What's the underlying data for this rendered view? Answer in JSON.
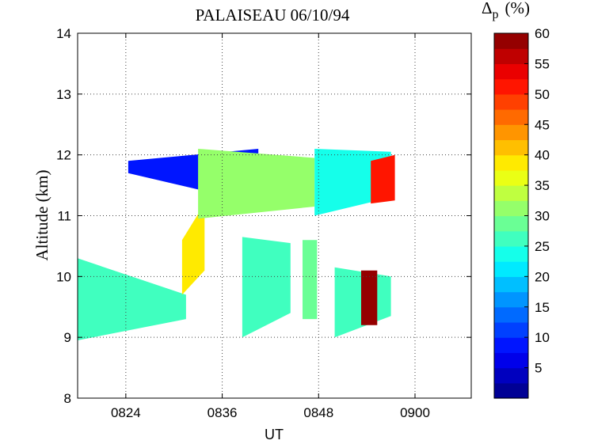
{
  "chart_data": {
    "type": "heatmap",
    "title": "PALAISEAU 06/10/94",
    "xlabel": "UT",
    "ylabel": "Altitude (km)",
    "x_ticks": [
      "0824",
      "0836",
      "0848",
      "0900"
    ],
    "x_tick_values_min": [
      504,
      516,
      528,
      540
    ],
    "xlim_min": [
      498,
      547
    ],
    "y_ticks": [
      8,
      9,
      10,
      11,
      12,
      13,
      14
    ],
    "ylim": [
      8,
      14
    ],
    "grid": true,
    "colorbar": {
      "title_main": "Δ",
      "title_sub": "p",
      "title_unit": "(%)",
      "ticks": [
        5,
        10,
        15,
        20,
        25,
        30,
        35,
        40,
        45,
        50,
        55,
        60
      ],
      "range": [
        0,
        60
      ],
      "colormap": "jet",
      "levels": 24
    },
    "regions": [
      {
        "x": [
          498.0,
          511.5
        ],
        "y_bottom": [
          8.95,
          9.3
        ],
        "y_top": [
          10.3,
          9.7
        ],
        "value": 27
      },
      {
        "x": [
          511.0,
          513.8
        ],
        "y_bottom": [
          9.7,
          10.1
        ],
        "y_top": [
          10.6,
          11.2
        ],
        "value": 38
      },
      {
        "x": [
          504.3,
          520.5
        ],
        "y_bottom": [
          11.7,
          11.2
        ],
        "y_top": [
          11.9,
          12.1
        ],
        "value": 9
      },
      {
        "x": [
          513.0,
          527.5
        ],
        "y_bottom": [
          10.95,
          11.15
        ],
        "y_top": [
          12.1,
          11.95
        ],
        "value": 30
      },
      {
        "x": [
          518.5,
          524.5
        ],
        "y_bottom": [
          9.0,
          9.4
        ],
        "y_top": [
          10.65,
          10.55
        ],
        "value": 27
      },
      {
        "x": [
          526.0,
          527.8
        ],
        "y_bottom": [
          9.3,
          9.3
        ],
        "y_top": [
          10.6,
          10.6
        ],
        "value": 28
      },
      {
        "x": [
          527.5,
          537.0
        ],
        "y_bottom": [
          11.0,
          11.3
        ],
        "y_top": [
          12.1,
          12.05
        ],
        "value": 24
      },
      {
        "x": [
          534.5,
          537.5
        ],
        "y_bottom": [
          11.2,
          11.25
        ],
        "y_top": [
          11.9,
          12.0
        ],
        "value": 50
      },
      {
        "x": [
          530.0,
          537.0
        ],
        "y_bottom": [
          9.0,
          9.35
        ],
        "y_top": [
          10.15,
          10.0
        ],
        "value": 26
      },
      {
        "x": [
          533.3,
          535.3
        ],
        "y_bottom": [
          9.2,
          9.2
        ],
        "y_top": [
          10.1,
          10.1
        ],
        "value": 58
      }
    ]
  }
}
